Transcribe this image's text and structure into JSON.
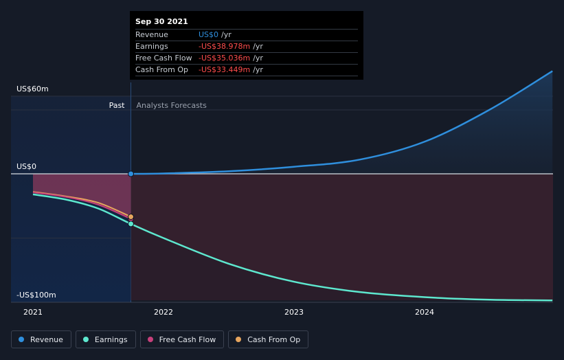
{
  "chart_data": {
    "type": "area",
    "xlabel": "",
    "ylabel": "",
    "x_ticks": [
      "2021",
      "2022",
      "2023",
      "2024"
    ],
    "y_labels": [
      "US$60m",
      "US$0",
      "-US$100m"
    ],
    "ylim": [
      -100,
      60
    ],
    "xlim": [
      2020.95,
      2024.98
    ],
    "grid": true,
    "legend_position": "bottom-left",
    "past_label": "Past",
    "forecast_label": "Analysts Forecasts",
    "divider_x": 2021.75,
    "series": [
      {
        "name": "Revenue",
        "color": "#2f8fdd",
        "x": [
          2021.75,
          2022.0,
          2022.5,
          2023.0,
          2023.5,
          2024.0,
          2024.5,
          2024.98
        ],
        "values": [
          0,
          0.3,
          2,
          5.5,
          11,
          25,
          50,
          80
        ]
      },
      {
        "name": "Earnings",
        "color": "#5ee8cf",
        "x": [
          2021.0,
          2021.25,
          2021.5,
          2021.75,
          2022.0,
          2022.5,
          2023.0,
          2023.5,
          2024.0,
          2024.5,
          2024.98
        ],
        "values": [
          -16,
          -20,
          -27,
          -38.978,
          -50,
          -70,
          -84,
          -92,
          -96,
          -98,
          -98.5
        ]
      },
      {
        "name": "Free Cash Flow",
        "color": "#c7407b",
        "x": [
          2021.0,
          2021.25,
          2021.5,
          2021.75
        ],
        "values": [
          -14.5,
          -18,
          -24,
          -35.036
        ]
      },
      {
        "name": "Cash From Op",
        "color": "#e6a55e",
        "x": [
          2021.0,
          2021.25,
          2021.5,
          2021.75
        ],
        "values": [
          -14,
          -17.5,
          -22.5,
          -33.449
        ]
      }
    ]
  },
  "tooltip": {
    "date": "Sep 30 2021",
    "rows": [
      {
        "name": "Revenue",
        "value": "US$0",
        "unit": "/yr",
        "color": "#2f8fdd"
      },
      {
        "name": "Earnings",
        "value": "-US$38.978m",
        "unit": "/yr",
        "color": "#ff4d4d"
      },
      {
        "name": "Free Cash Flow",
        "value": "-US$35.036m",
        "unit": "/yr",
        "color": "#ff4d4d"
      },
      {
        "name": "Cash From Op",
        "value": "-US$33.449m",
        "unit": "/yr",
        "color": "#ff4d4d"
      }
    ]
  },
  "legend": [
    {
      "label": "Revenue",
      "color": "#2f8fdd"
    },
    {
      "label": "Earnings",
      "color": "#5ee8cf"
    },
    {
      "label": "Free Cash Flow",
      "color": "#c7407b"
    },
    {
      "label": "Cash From Op",
      "color": "#e6a55e"
    }
  ]
}
